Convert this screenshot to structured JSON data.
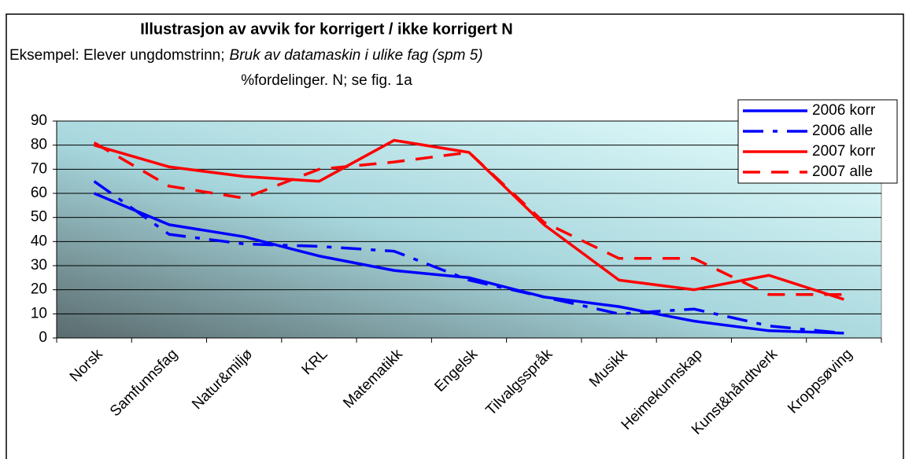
{
  "chart_data": {
    "type": "line",
    "title": "Illustrasjon av avvik for korrigert / ikke korrigert N",
    "subtitle": "Eksempel: Elever ungdomstrinn;",
    "subtitle_italic": "Bruk av datamaskin i ulike fag (spm 5)",
    "subtitle2": "%fordelinger. N; se fig. 1a",
    "categories": [
      "Norsk",
      "Samfunnsfag",
      "Natur&miljø",
      "KRL",
      "Matematikk",
      "Engelsk",
      "Tilvalgsspråk",
      "Musikk",
      "Heimekunnskap",
      "Kunst&håndtverk",
      "Kroppsøving"
    ],
    "series": [
      {
        "name": "2006 korr",
        "color": "#0000ff",
        "style": "solid",
        "values": [
          60,
          47,
          42,
          34,
          28,
          25,
          17,
          13,
          7,
          3,
          2
        ]
      },
      {
        "name": "2006 alle",
        "color": "#0000ff",
        "style": "dashdot",
        "values": [
          65,
          43,
          39,
          38,
          36,
          24,
          17,
          10,
          12,
          5,
          2
        ]
      },
      {
        "name": "2007 korr",
        "color": "#ff0000",
        "style": "solid",
        "values": [
          80,
          71,
          67,
          65,
          82,
          77,
          47,
          24,
          20,
          26,
          16
        ]
      },
      {
        "name": "2007 alle",
        "color": "#ff0000",
        "style": "dashed",
        "values": [
          81,
          63,
          58,
          70,
          73,
          77,
          48,
          33,
          33,
          18,
          18
        ]
      }
    ],
    "ylim": [
      0,
      90
    ],
    "yticks": [
      0,
      10,
      20,
      30,
      40,
      50,
      60,
      70,
      80,
      90
    ],
    "grid": true,
    "legend": "top-right"
  }
}
